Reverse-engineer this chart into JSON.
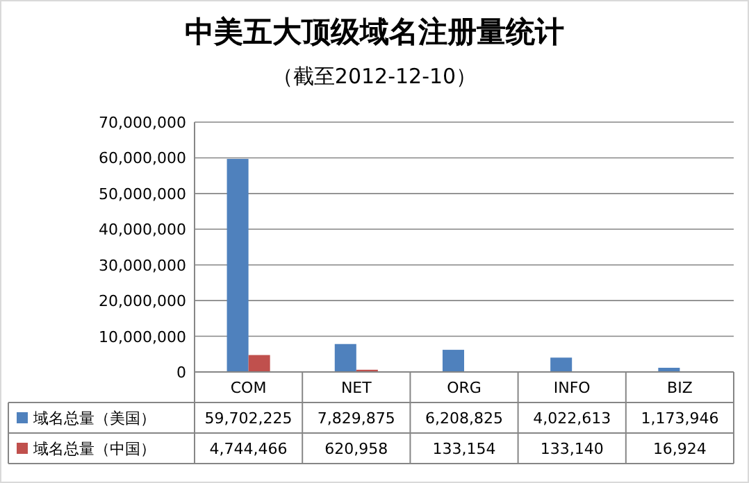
{
  "chart_data": {
    "type": "bar",
    "title": "中美五大顶级域名注册量统计",
    "subtitle": "（截至2012-12-10）",
    "categories": [
      "COM",
      "NET",
      "ORG",
      "INFO",
      "BIZ"
    ],
    "series": [
      {
        "name": "域名总量（美国）",
        "color": "#4f81bd",
        "values": [
          59702225,
          7829875,
          6208825,
          4022613,
          1173946
        ],
        "value_labels": [
          "59,702,225",
          "7,829,875",
          "6,208,825",
          "4,022,613",
          "1,173,946"
        ]
      },
      {
        "name": "域名总量（中国）",
        "color": "#c0504d",
        "values": [
          4744466,
          620958,
          133154,
          133140,
          16924
        ],
        "value_labels": [
          "4,744,466",
          "620,958",
          "133,154",
          "133,140",
          "16,924"
        ]
      }
    ],
    "ylim": [
      0,
      70000000
    ],
    "yticks": [
      {
        "value": 0,
        "label": "0"
      },
      {
        "value": 10000000,
        "label": "10,000,000"
      },
      {
        "value": 20000000,
        "label": "20,000,000"
      },
      {
        "value": 30000000,
        "label": "30,000,000"
      },
      {
        "value": 40000000,
        "label": "40,000,000"
      },
      {
        "value": 50000000,
        "label": "50,000,000"
      },
      {
        "value": 60000000,
        "label": "60,000,000"
      },
      {
        "value": 70000000,
        "label": "70,000,000"
      }
    ],
    "grid": "y",
    "legend": "bottom left"
  }
}
